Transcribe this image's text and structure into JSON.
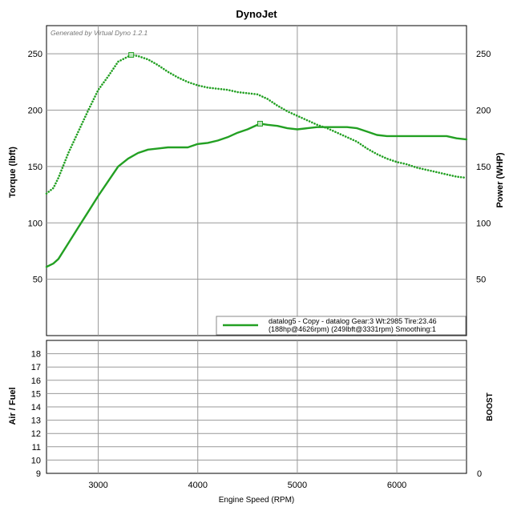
{
  "chart_data": [
    {
      "type": "line",
      "title": "DynoJet",
      "watermark": "Generated by Virtual Dyno 1.2.1",
      "xlabel": "Engine Speed (RPM)",
      "ylabel_left": "Torque (lbft)",
      "ylabel_right": "Power (WHP)",
      "xlim": [
        2480,
        6700
      ],
      "ylim_left": [
        0,
        275
      ],
      "ylim_right": [
        0,
        275
      ],
      "x_ticks": [
        3000,
        4000,
        5000,
        6000
      ],
      "y_ticks_left": [
        50,
        100,
        150,
        200,
        250
      ],
      "y_ticks_right": [
        50,
        100,
        150,
        200,
        250
      ],
      "grid": true,
      "legend_position": "bottom-right",
      "legend": {
        "line1": "datalog5 - Copy - datalog Gear:3 Wt:2985 Tire:23.46",
        "line2": "(188hp@4626rpm) (249lbft@3331rpm) Smoothing:1"
      },
      "series": [
        {
          "name": "Power",
          "style": "solid",
          "color": "#23a023",
          "axis": "right",
          "peak": [
            4626,
            188
          ],
          "x": [
            2480,
            2550,
            2600,
            2700,
            2800,
            2900,
            3000,
            3100,
            3200,
            3300,
            3400,
            3500,
            3600,
            3700,
            3800,
            3900,
            4000,
            4100,
            4200,
            4300,
            4400,
            4500,
            4626,
            4700,
            4800,
            4900,
            5000,
            5100,
            5200,
            5300,
            5400,
            5500,
            5600,
            5700,
            5800,
            5900,
            6000,
            6100,
            6200,
            6300,
            6400,
            6500,
            6600,
            6700
          ],
          "values": [
            61,
            64,
            68,
            82,
            96,
            110,
            124,
            137,
            150,
            157,
            162,
            165,
            166,
            167,
            167,
            167,
            170,
            171,
            173,
            176,
            180,
            183,
            188,
            187,
            186,
            184,
            183,
            184,
            185,
            185,
            185,
            185,
            184,
            181,
            178,
            177,
            177,
            177,
            177,
            177,
            177,
            177,
            175,
            174
          ]
        },
        {
          "name": "Torque",
          "style": "dotted",
          "color": "#23a023",
          "axis": "left",
          "peak": [
            3331,
            249
          ],
          "x": [
            2480,
            2550,
            2600,
            2700,
            2800,
            2900,
            3000,
            3100,
            3200,
            3331,
            3400,
            3500,
            3600,
            3700,
            3800,
            3900,
            4000,
            4100,
            4200,
            4300,
            4400,
            4500,
            4600,
            4700,
            4800,
            4900,
            5000,
            5100,
            5200,
            5300,
            5400,
            5500,
            5600,
            5700,
            5800,
            5900,
            6000,
            6100,
            6200,
            6300,
            6400,
            6500,
            6600,
            6700
          ],
          "values": [
            126,
            131,
            140,
            162,
            181,
            200,
            218,
            230,
            243,
            249,
            248,
            245,
            240,
            234,
            229,
            225,
            222,
            220,
            219,
            218,
            216,
            215,
            214,
            210,
            204,
            199,
            195,
            191,
            187,
            184,
            180,
            176,
            172,
            166,
            161,
            157,
            154,
            152,
            149,
            147,
            145,
            143,
            141,
            140
          ]
        }
      ]
    },
    {
      "type": "line",
      "ylabel_left": "Air / Fuel",
      "ylabel_right": "BOOST",
      "xlim": [
        2480,
        6700
      ],
      "ylim_left": [
        9,
        19
      ],
      "y_ticks_left": [
        9,
        10,
        11,
        12,
        13,
        14,
        15,
        16,
        17,
        18
      ],
      "y_ticks_right": [
        0
      ],
      "grid": true,
      "series": []
    }
  ]
}
